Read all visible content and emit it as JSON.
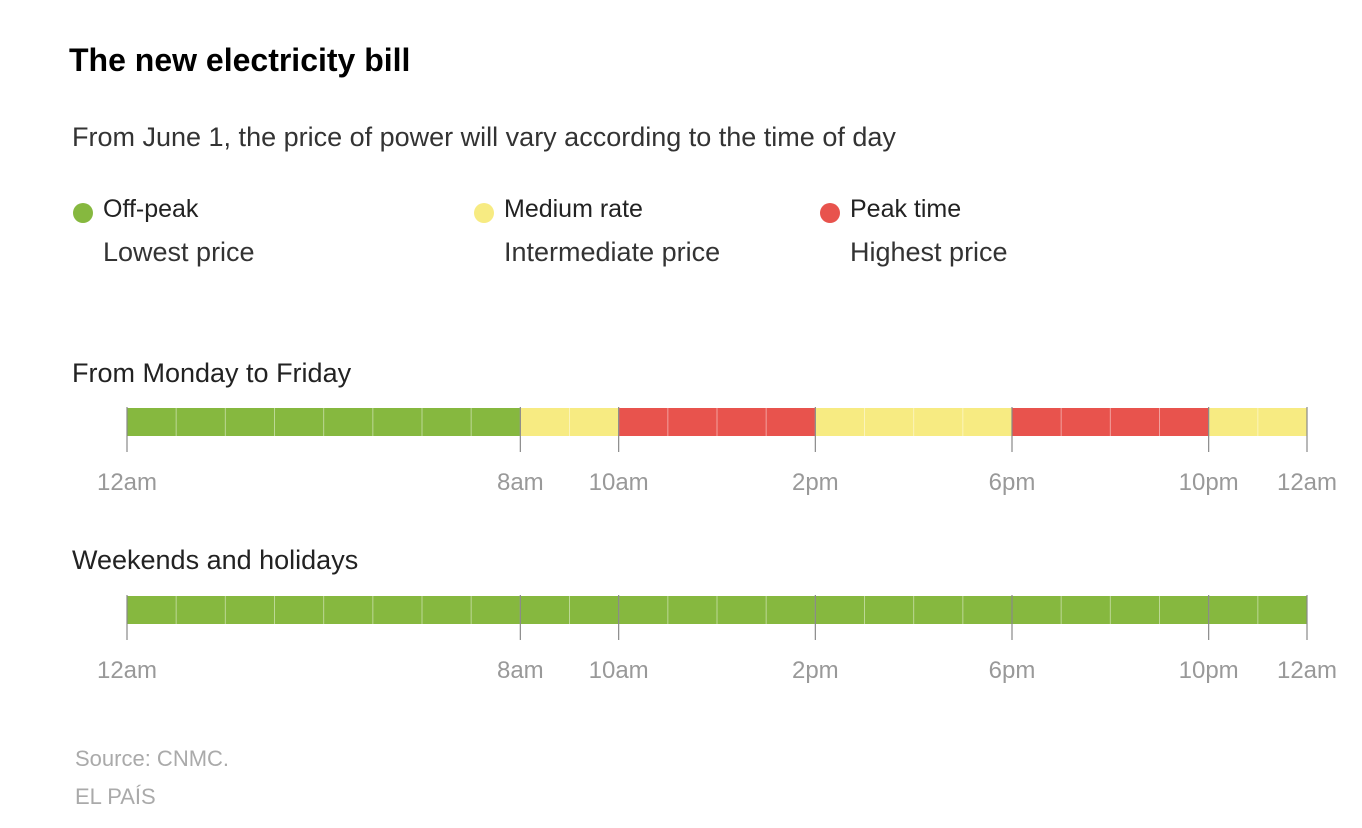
{
  "title": "The new electricity bill",
  "subtitle": "From June 1, the price of power will vary according to the time of day",
  "legend": [
    {
      "key": "off_peak",
      "name": "Off-peak",
      "description": "Lowest price",
      "color": "#86b83f"
    },
    {
      "key": "medium",
      "name": "Medium rate",
      "description": "Intermediate price",
      "color": "#f7eb82"
    },
    {
      "key": "peak",
      "name": "Peak time",
      "description": "Highest price",
      "color": "#e8534d"
    }
  ],
  "chart_data": [
    {
      "type": "timeline",
      "title": "From Monday to Friday",
      "x_range_hours": [
        0,
        24
      ],
      "tick_hours": [
        0,
        8,
        10,
        14,
        18,
        22,
        24
      ],
      "tick_labels": [
        "12am",
        "8am",
        "10am",
        "2pm",
        "6pm",
        "10pm",
        "12am"
      ],
      "segments": [
        {
          "start": 0,
          "end": 8,
          "rate": "off_peak"
        },
        {
          "start": 8,
          "end": 10,
          "rate": "medium"
        },
        {
          "start": 10,
          "end": 14,
          "rate": "peak"
        },
        {
          "start": 14,
          "end": 18,
          "rate": "medium"
        },
        {
          "start": 18,
          "end": 22,
          "rate": "peak"
        },
        {
          "start": 22,
          "end": 24,
          "rate": "medium"
        }
      ]
    },
    {
      "type": "timeline",
      "title": "Weekends and holidays",
      "x_range_hours": [
        0,
        24
      ],
      "tick_hours": [
        0,
        8,
        10,
        14,
        18,
        22,
        24
      ],
      "tick_labels": [
        "12am",
        "8am",
        "10am",
        "2pm",
        "6pm",
        "10pm",
        "12am"
      ],
      "segments": [
        {
          "start": 0,
          "end": 24,
          "rate": "off_peak"
        }
      ]
    }
  ],
  "footer": {
    "source": "Source: CNMC.",
    "credit": "EL PAÍS"
  }
}
